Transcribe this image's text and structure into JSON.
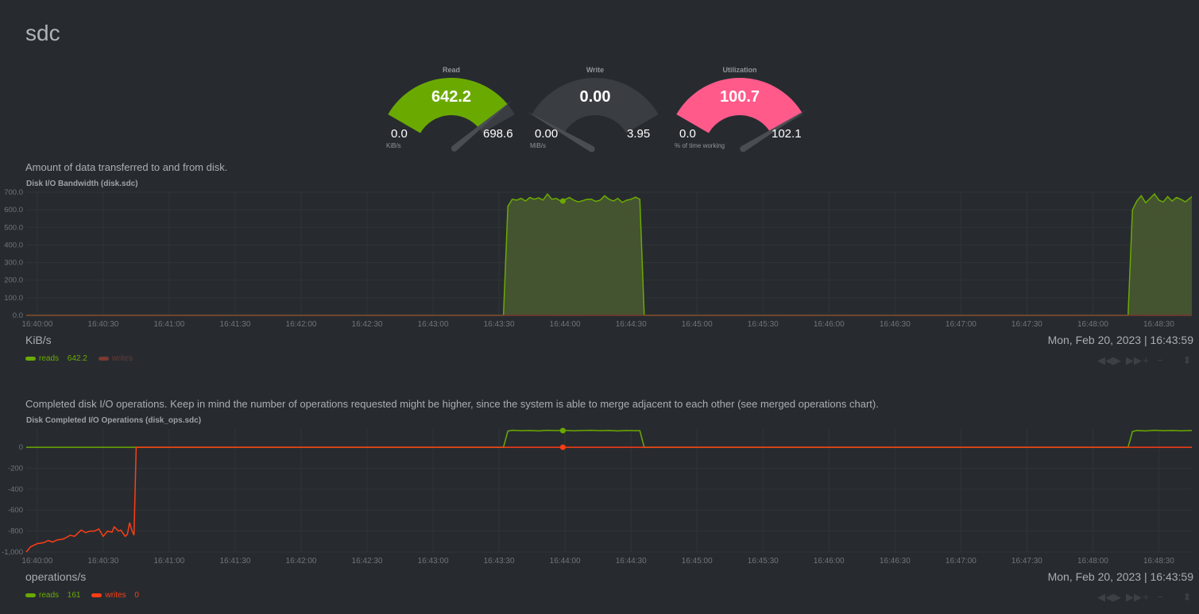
{
  "page_title": "sdc",
  "gauges": [
    {
      "title": "Read",
      "value": "642.2",
      "min": "0.0",
      "max": "698.6",
      "unit": "KiB/s",
      "fraction": 0.919,
      "color": "#6aaa00"
    },
    {
      "title": "Write",
      "value": "0.00",
      "min": "0.00",
      "max": "3.95",
      "unit": "MiB/s",
      "fraction": 0.0,
      "color": "#3a3d42"
    },
    {
      "title": "Utilization",
      "value": "100.7",
      "min": "0.0",
      "max": "102.1",
      "unit": "% of time working",
      "fraction": 0.986,
      "color": "#ff5a8a"
    }
  ],
  "charts": [
    {
      "description": "Amount of data transferred to and from disk.",
      "title": "Disk I/O Bandwidth (disk.sdc)",
      "units": "KiB/s",
      "timestamp": "Mon, Feb 20, 2023 | 16:43:59",
      "legend": [
        {
          "label": "reads",
          "value": "642.2",
          "color": "#6aaa00",
          "text_color": "#6aaa00"
        },
        {
          "label": "writes",
          "value": "",
          "color": "#7a3a30",
          "text_color": "#6a3a32"
        }
      ]
    },
    {
      "description": "Completed disk I/O operations. Keep in mind the number of operations requested might be higher, since the system is able to merge adjacent to each other (see merged operations chart).",
      "title": "Disk Completed I/O Operations (disk_ops.sdc)",
      "units": "operations/s",
      "timestamp": "Mon, Feb 20, 2023 | 16:43:59",
      "legend": [
        {
          "label": "reads",
          "value": "161",
          "color": "#6aaa00",
          "text_color": "#6aaa00"
        },
        {
          "label": "writes",
          "value": "0",
          "color": "#ff3d14",
          "text_color": "#ff3d14"
        }
      ]
    }
  ],
  "controls": [
    "◀◀",
    "▶",
    "▶▶",
    "+",
    "−",
    "⬍"
  ],
  "chart_data": [
    {
      "type": "area",
      "title": "Disk I/O Bandwidth (disk.sdc)",
      "ylabel": "KiB/s",
      "x_unit": "seconds after 16:40:00",
      "xlim": [
        -5,
        525
      ],
      "ylim": [
        0,
        700
      ],
      "yticks": [
        "700.0",
        "600.0",
        "500.0",
        "400.0",
        "300.0",
        "200.0",
        "100.0",
        "0.0"
      ],
      "ytick_values": [
        700,
        600,
        500,
        400,
        300,
        200,
        100,
        0
      ],
      "xticks": [
        "16:40:00",
        "16:40:30",
        "16:41:00",
        "16:41:30",
        "16:42:00",
        "16:42:30",
        "16:43:00",
        "16:43:30",
        "16:44:00",
        "16:44:30",
        "16:45:00",
        "16:45:30",
        "16:46:00",
        "16:46:30",
        "16:47:00",
        "16:47:30",
        "16:48:00",
        "16:48:30"
      ],
      "xtick_values": [
        0,
        30,
        60,
        90,
        120,
        150,
        180,
        210,
        240,
        270,
        300,
        330,
        360,
        390,
        420,
        450,
        480,
        510
      ],
      "highlight_x": 239,
      "series": [
        {
          "name": "reads",
          "color": "#6aaa00",
          "fill": "#4a5a30",
          "points": [
            [
              -5,
              0
            ],
            [
              212,
              0
            ],
            [
              214,
              620
            ],
            [
              216,
              660
            ],
            [
              218,
              655
            ],
            [
              220,
              665
            ],
            [
              222,
              650
            ],
            [
              224,
              670
            ],
            [
              226,
              660
            ],
            [
              228,
              668
            ],
            [
              230,
              655
            ],
            [
              232,
              690
            ],
            [
              234,
              660
            ],
            [
              236,
              665
            ],
            [
              238,
              650
            ],
            [
              240,
              658
            ],
            [
              242,
              670
            ],
            [
              244,
              655
            ],
            [
              246,
              645
            ],
            [
              248,
              652
            ],
            [
              250,
              660
            ],
            [
              252,
              660
            ],
            [
              254,
              648
            ],
            [
              256,
              655
            ],
            [
              258,
              680
            ],
            [
              260,
              660
            ],
            [
              262,
              650
            ],
            [
              264,
              665
            ],
            [
              266,
              642
            ],
            [
              268,
              655
            ],
            [
              270,
              660
            ],
            [
              272,
              672
            ],
            [
              274,
              660
            ],
            [
              276,
              0
            ],
            [
              496,
              0
            ],
            [
              498,
              600
            ],
            [
              500,
              650
            ],
            [
              502,
              680
            ],
            [
              504,
              640
            ],
            [
              506,
              665
            ],
            [
              508,
              690
            ],
            [
              510,
              655
            ],
            [
              512,
              645
            ],
            [
              514,
              675
            ],
            [
              516,
              650
            ],
            [
              518,
              670
            ],
            [
              520,
              660
            ],
            [
              522,
              645
            ],
            [
              525,
              675
            ]
          ]
        },
        {
          "name": "writes",
          "color": "#7a3a30",
          "points": [
            [
              -5,
              0
            ],
            [
              525,
              0
            ]
          ]
        }
      ]
    },
    {
      "type": "line",
      "title": "Disk Completed I/O Operations (disk_ops.sdc)",
      "ylabel": "operations/s",
      "x_unit": "seconds after 16:40:00",
      "xlim": [
        -5,
        525
      ],
      "ylim": [
        -1000,
        175
      ],
      "yticks": [
        "0",
        "-200",
        "-400",
        "-600",
        "-800",
        "-1,000"
      ],
      "ytick_values": [
        0,
        -200,
        -400,
        -600,
        -800,
        -1000
      ],
      "xticks": [
        "16:40:00",
        "16:40:30",
        "16:41:00",
        "16:41:30",
        "16:42:00",
        "16:42:30",
        "16:43:00",
        "16:43:30",
        "16:44:00",
        "16:44:30",
        "16:45:00",
        "16:45:30",
        "16:46:00",
        "16:46:30",
        "16:47:00",
        "16:47:30",
        "16:48:00",
        "16:48:30"
      ],
      "xtick_values": [
        0,
        30,
        60,
        90,
        120,
        150,
        180,
        210,
        240,
        270,
        300,
        330,
        360,
        390,
        420,
        450,
        480,
        510
      ],
      "highlight_x": 239,
      "series": [
        {
          "name": "reads",
          "color": "#6aaa00",
          "points": [
            [
              -5,
              0
            ],
            [
              212,
              0
            ],
            [
              214,
              155
            ],
            [
              216,
              162
            ],
            [
              220,
              158
            ],
            [
              224,
              160
            ],
            [
              228,
              156
            ],
            [
              232,
              162
            ],
            [
              236,
              159
            ],
            [
              240,
              161
            ],
            [
              244,
              157
            ],
            [
              248,
              160
            ],
            [
              252,
              162
            ],
            [
              256,
              158
            ],
            [
              260,
              160
            ],
            [
              264,
              156
            ],
            [
              268,
              160
            ],
            [
              272,
              158
            ],
            [
              274,
              158
            ],
            [
              276,
              0
            ],
            [
              496,
              0
            ],
            [
              498,
              150
            ],
            [
              500,
              160
            ],
            [
              504,
              156
            ],
            [
              508,
              162
            ],
            [
              512,
              158
            ],
            [
              516,
              160
            ],
            [
              520,
              157
            ],
            [
              525,
              160
            ]
          ]
        },
        {
          "name": "writes",
          "color": "#ff3d14",
          "points": [
            [
              -5,
              -1000
            ],
            [
              -3,
              -950
            ],
            [
              0,
              -920
            ],
            [
              3,
              -910
            ],
            [
              5,
              -890
            ],
            [
              7,
              -905
            ],
            [
              9,
              -885
            ],
            [
              12,
              -875
            ],
            [
              15,
              -840
            ],
            [
              17,
              -850
            ],
            [
              20,
              -790
            ],
            [
              22,
              -815
            ],
            [
              24,
              -800
            ],
            [
              26,
              -800
            ],
            [
              28,
              -780
            ],
            [
              30,
              -850
            ],
            [
              32,
              -800
            ],
            [
              34,
              -810
            ],
            [
              35,
              -760
            ],
            [
              37,
              -800
            ],
            [
              38,
              -790
            ],
            [
              40,
              -850
            ],
            [
              41,
              -830
            ],
            [
              42,
              -720
            ],
            [
              43,
              -790
            ],
            [
              44,
              -840
            ],
            [
              45,
              0
            ],
            [
              525,
              0
            ]
          ]
        }
      ]
    }
  ]
}
